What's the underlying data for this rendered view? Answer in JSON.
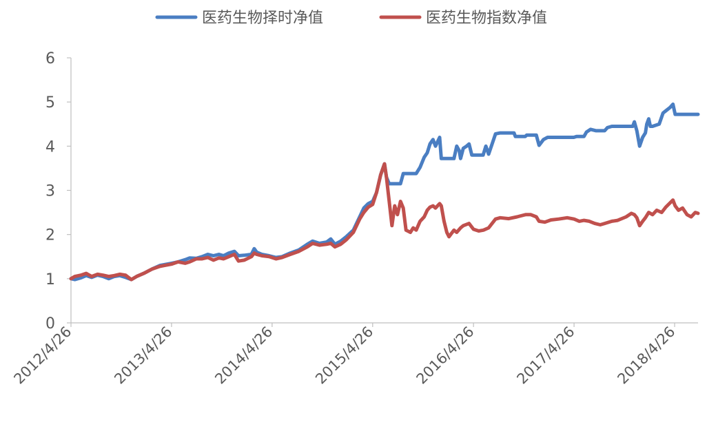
{
  "chart_data": {
    "type": "line",
    "title": "",
    "xlabel": "",
    "ylabel": "",
    "ylim": [
      0,
      6
    ],
    "y_ticks": [
      "0",
      "1",
      "2",
      "3",
      "4",
      "5",
      "6"
    ],
    "x_range": [
      "2012-04-26",
      "2018-07-20"
    ],
    "x_ticks": [
      "2012/4/26",
      "2013/4/26",
      "2014/4/26",
      "2015/4/26",
      "2016/4/26",
      "2017/4/26",
      "2018/4/26"
    ],
    "x_tick_dates": [
      "2012-04-26",
      "2013-04-26",
      "2014-04-26",
      "2015-04-26",
      "2016-04-26",
      "2017-04-26",
      "2018-04-26"
    ],
    "grid": false,
    "legend_position": "top",
    "series": [
      {
        "name": "医药生物择时净值",
        "color": "#4A7EC2",
        "points": [
          [
            "2012-04-26",
            1.0
          ],
          [
            "2012-05-10",
            0.98
          ],
          [
            "2012-06-01",
            1.02
          ],
          [
            "2012-06-20",
            1.07
          ],
          [
            "2012-07-10",
            1.03
          ],
          [
            "2012-07-31",
            1.08
          ],
          [
            "2012-08-20",
            1.05
          ],
          [
            "2012-09-10",
            1.0
          ],
          [
            "2012-09-30",
            1.05
          ],
          [
            "2012-10-20",
            1.07
          ],
          [
            "2012-11-10",
            1.03
          ],
          [
            "2012-12-01",
            0.98
          ],
          [
            "2012-12-20",
            1.05
          ],
          [
            "2013-01-15",
            1.12
          ],
          [
            "2013-02-15",
            1.22
          ],
          [
            "2013-03-15",
            1.3
          ],
          [
            "2013-04-01",
            1.32
          ],
          [
            "2013-04-26",
            1.35
          ],
          [
            "2013-05-20",
            1.38
          ],
          [
            "2013-06-15",
            1.43
          ],
          [
            "2013-07-01",
            1.47
          ],
          [
            "2013-07-25",
            1.46
          ],
          [
            "2013-08-15",
            1.5
          ],
          [
            "2013-09-05",
            1.55
          ],
          [
            "2013-09-25",
            1.52
          ],
          [
            "2013-10-15",
            1.55
          ],
          [
            "2013-11-01",
            1.52
          ],
          [
            "2013-11-20",
            1.58
          ],
          [
            "2013-12-10",
            1.62
          ],
          [
            "2013-12-25",
            1.52
          ],
          [
            "2014-01-15",
            1.53
          ],
          [
            "2014-02-10",
            1.55
          ],
          [
            "2014-02-20",
            1.68
          ],
          [
            "2014-03-01",
            1.6
          ],
          [
            "2014-03-20",
            1.55
          ],
          [
            "2014-04-15",
            1.52
          ],
          [
            "2014-05-10",
            1.48
          ],
          [
            "2014-06-01",
            1.5
          ],
          [
            "2014-07-01",
            1.58
          ],
          [
            "2014-08-01",
            1.65
          ],
          [
            "2014-09-01",
            1.78
          ],
          [
            "2014-09-20",
            1.85
          ],
          [
            "2014-10-15",
            1.8
          ],
          [
            "2014-11-10",
            1.83
          ],
          [
            "2014-11-25",
            1.9
          ],
          [
            "2014-12-10",
            1.78
          ],
          [
            "2014-12-31",
            1.85
          ],
          [
            "2015-01-20",
            1.95
          ],
          [
            "2015-02-15",
            2.1
          ],
          [
            "2015-03-10",
            2.4
          ],
          [
            "2015-03-25",
            2.6
          ],
          [
            "2015-04-10",
            2.7
          ],
          [
            "2015-04-26",
            2.75
          ],
          [
            "2015-05-10",
            2.95
          ],
          [
            "2015-05-25",
            3.35
          ],
          [
            "2015-06-08",
            3.6
          ],
          [
            "2015-06-15",
            3.3
          ],
          [
            "2015-06-25",
            3.15
          ],
          [
            "2015-07-15",
            3.15
          ],
          [
            "2015-08-05",
            3.15
          ],
          [
            "2015-08-15",
            3.38
          ],
          [
            "2015-09-20",
            3.38
          ],
          [
            "2015-10-01",
            3.38
          ],
          [
            "2015-10-15",
            3.52
          ],
          [
            "2015-10-30",
            3.75
          ],
          [
            "2015-11-10",
            3.85
          ],
          [
            "2015-11-20",
            4.05
          ],
          [
            "2015-12-01",
            4.15
          ],
          [
            "2015-12-10",
            4.0
          ],
          [
            "2015-12-25",
            4.2
          ],
          [
            "2015-12-31",
            3.72
          ],
          [
            "2016-02-15",
            3.72
          ],
          [
            "2016-02-25",
            4.0
          ],
          [
            "2016-03-05",
            3.9
          ],
          [
            "2016-03-10",
            3.72
          ],
          [
            "2016-03-20",
            3.95
          ],
          [
            "2016-04-01",
            4.0
          ],
          [
            "2016-04-10",
            4.05
          ],
          [
            "2016-04-20",
            3.8
          ],
          [
            "2016-05-31",
            3.8
          ],
          [
            "2016-06-10",
            4.0
          ],
          [
            "2016-06-20",
            3.82
          ],
          [
            "2016-07-01",
            4.02
          ],
          [
            "2016-07-15",
            4.28
          ],
          [
            "2016-08-01",
            4.3
          ],
          [
            "2016-09-20",
            4.3
          ],
          [
            "2016-09-25",
            4.22
          ],
          [
            "2016-10-31",
            4.22
          ],
          [
            "2016-11-05",
            4.25
          ],
          [
            "2016-12-10",
            4.25
          ],
          [
            "2016-12-20",
            4.02
          ],
          [
            "2017-01-05",
            4.15
          ],
          [
            "2017-01-20",
            4.2
          ],
          [
            "2017-04-25",
            4.2
          ],
          [
            "2017-05-05",
            4.22
          ],
          [
            "2017-06-01",
            4.22
          ],
          [
            "2017-06-10",
            4.32
          ],
          [
            "2017-06-25",
            4.38
          ],
          [
            "2017-07-15",
            4.35
          ],
          [
            "2017-08-15",
            4.35
          ],
          [
            "2017-08-25",
            4.42
          ],
          [
            "2017-09-10",
            4.45
          ],
          [
            "2017-11-25",
            4.45
          ],
          [
            "2017-12-01",
            4.55
          ],
          [
            "2017-12-10",
            4.35
          ],
          [
            "2017-12-20",
            4.0
          ],
          [
            "2017-12-31",
            4.2
          ],
          [
            "2018-01-10",
            4.3
          ],
          [
            "2018-01-15",
            4.5
          ],
          [
            "2018-01-22",
            4.62
          ],
          [
            "2018-01-28",
            4.45
          ],
          [
            "2018-02-05",
            4.45
          ],
          [
            "2018-03-01",
            4.5
          ],
          [
            "2018-03-15",
            4.75
          ],
          [
            "2018-03-25",
            4.8
          ],
          [
            "2018-04-10",
            4.88
          ],
          [
            "2018-04-20",
            4.95
          ],
          [
            "2018-04-28",
            4.72
          ],
          [
            "2018-05-10",
            4.72
          ],
          [
            "2018-07-20",
            4.72
          ]
        ]
      },
      {
        "name": "医药生物指数净值",
        "color": "#C0504D",
        "points": [
          [
            "2012-04-26",
            1.0
          ],
          [
            "2012-05-10",
            1.05
          ],
          [
            "2012-06-01",
            1.08
          ],
          [
            "2012-06-20",
            1.12
          ],
          [
            "2012-07-10",
            1.05
          ],
          [
            "2012-07-31",
            1.1
          ],
          [
            "2012-08-20",
            1.08
          ],
          [
            "2012-09-10",
            1.05
          ],
          [
            "2012-09-30",
            1.07
          ],
          [
            "2012-10-20",
            1.1
          ],
          [
            "2012-11-10",
            1.08
          ],
          [
            "2012-12-01",
            0.98
          ],
          [
            "2012-12-20",
            1.05
          ],
          [
            "2013-01-15",
            1.12
          ],
          [
            "2013-02-15",
            1.22
          ],
          [
            "2013-03-15",
            1.28
          ],
          [
            "2013-04-01",
            1.3
          ],
          [
            "2013-04-26",
            1.33
          ],
          [
            "2013-05-20",
            1.38
          ],
          [
            "2013-06-15",
            1.35
          ],
          [
            "2013-07-01",
            1.38
          ],
          [
            "2013-07-25",
            1.45
          ],
          [
            "2013-08-15",
            1.45
          ],
          [
            "2013-09-05",
            1.48
          ],
          [
            "2013-09-25",
            1.42
          ],
          [
            "2013-10-15",
            1.47
          ],
          [
            "2013-11-01",
            1.45
          ],
          [
            "2013-11-20",
            1.5
          ],
          [
            "2013-12-10",
            1.55
          ],
          [
            "2013-12-25",
            1.4
          ],
          [
            "2014-01-15",
            1.42
          ],
          [
            "2014-02-10",
            1.5
          ],
          [
            "2014-02-20",
            1.58
          ],
          [
            "2014-03-01",
            1.55
          ],
          [
            "2014-03-20",
            1.52
          ],
          [
            "2014-04-15",
            1.5
          ],
          [
            "2014-05-10",
            1.45
          ],
          [
            "2014-06-01",
            1.48
          ],
          [
            "2014-07-01",
            1.55
          ],
          [
            "2014-08-01",
            1.62
          ],
          [
            "2014-09-01",
            1.72
          ],
          [
            "2014-09-20",
            1.8
          ],
          [
            "2014-10-15",
            1.76
          ],
          [
            "2014-11-10",
            1.78
          ],
          [
            "2014-11-25",
            1.8
          ],
          [
            "2014-12-10",
            1.72
          ],
          [
            "2014-12-31",
            1.78
          ],
          [
            "2015-01-20",
            1.88
          ],
          [
            "2015-02-15",
            2.05
          ],
          [
            "2015-03-10",
            2.35
          ],
          [
            "2015-03-25",
            2.5
          ],
          [
            "2015-04-10",
            2.62
          ],
          [
            "2015-04-26",
            2.68
          ],
          [
            "2015-05-10",
            2.95
          ],
          [
            "2015-05-25",
            3.35
          ],
          [
            "2015-06-08",
            3.6
          ],
          [
            "2015-06-15",
            3.3
          ],
          [
            "2015-06-25",
            2.75
          ],
          [
            "2015-07-05",
            2.2
          ],
          [
            "2015-07-15",
            2.65
          ],
          [
            "2015-07-25",
            2.45
          ],
          [
            "2015-08-05",
            2.75
          ],
          [
            "2015-08-15",
            2.6
          ],
          [
            "2015-08-25",
            2.1
          ],
          [
            "2015-09-10",
            2.05
          ],
          [
            "2015-09-20",
            2.15
          ],
          [
            "2015-10-01",
            2.1
          ],
          [
            "2015-10-15",
            2.3
          ],
          [
            "2015-10-30",
            2.4
          ],
          [
            "2015-11-10",
            2.55
          ],
          [
            "2015-11-20",
            2.62
          ],
          [
            "2015-12-01",
            2.65
          ],
          [
            "2015-12-10",
            2.6
          ],
          [
            "2015-12-25",
            2.7
          ],
          [
            "2015-12-31",
            2.65
          ],
          [
            "2016-01-10",
            2.3
          ],
          [
            "2016-01-20",
            2.05
          ],
          [
            "2016-01-28",
            1.95
          ],
          [
            "2016-02-15",
            2.1
          ],
          [
            "2016-02-25",
            2.05
          ],
          [
            "2016-03-10",
            2.15
          ],
          [
            "2016-03-20",
            2.2
          ],
          [
            "2016-04-10",
            2.25
          ],
          [
            "2016-04-26",
            2.12
          ],
          [
            "2016-05-15",
            2.08
          ],
          [
            "2016-06-01",
            2.1
          ],
          [
            "2016-06-20",
            2.15
          ],
          [
            "2016-07-15",
            2.35
          ],
          [
            "2016-08-01",
            2.38
          ],
          [
            "2016-09-01",
            2.36
          ],
          [
            "2016-10-01",
            2.4
          ],
          [
            "2016-11-01",
            2.45
          ],
          [
            "2016-11-20",
            2.45
          ],
          [
            "2016-12-10",
            2.4
          ],
          [
            "2016-12-20",
            2.3
          ],
          [
            "2017-01-10",
            2.28
          ],
          [
            "2017-02-01",
            2.33
          ],
          [
            "2017-03-01",
            2.35
          ],
          [
            "2017-04-01",
            2.38
          ],
          [
            "2017-04-26",
            2.35
          ],
          [
            "2017-05-15",
            2.3
          ],
          [
            "2017-06-01",
            2.32
          ],
          [
            "2017-06-20",
            2.3
          ],
          [
            "2017-07-10",
            2.25
          ],
          [
            "2017-07-30",
            2.22
          ],
          [
            "2017-08-15",
            2.25
          ],
          [
            "2017-09-10",
            2.3
          ],
          [
            "2017-10-01",
            2.32
          ],
          [
            "2017-11-01",
            2.4
          ],
          [
            "2017-11-20",
            2.48
          ],
          [
            "2017-12-01",
            2.45
          ],
          [
            "2017-12-10",
            2.38
          ],
          [
            "2017-12-20",
            2.2
          ],
          [
            "2017-12-31",
            2.3
          ],
          [
            "2018-01-10",
            2.38
          ],
          [
            "2018-01-22",
            2.5
          ],
          [
            "2018-02-05",
            2.45
          ],
          [
            "2018-02-20",
            2.55
          ],
          [
            "2018-03-10",
            2.5
          ],
          [
            "2018-03-25",
            2.62
          ],
          [
            "2018-04-10",
            2.72
          ],
          [
            "2018-04-20",
            2.78
          ],
          [
            "2018-04-28",
            2.65
          ],
          [
            "2018-05-10",
            2.55
          ],
          [
            "2018-05-25",
            2.6
          ],
          [
            "2018-06-10",
            2.45
          ],
          [
            "2018-06-25",
            2.4
          ],
          [
            "2018-07-10",
            2.5
          ],
          [
            "2018-07-20",
            2.48
          ]
        ]
      }
    ]
  }
}
